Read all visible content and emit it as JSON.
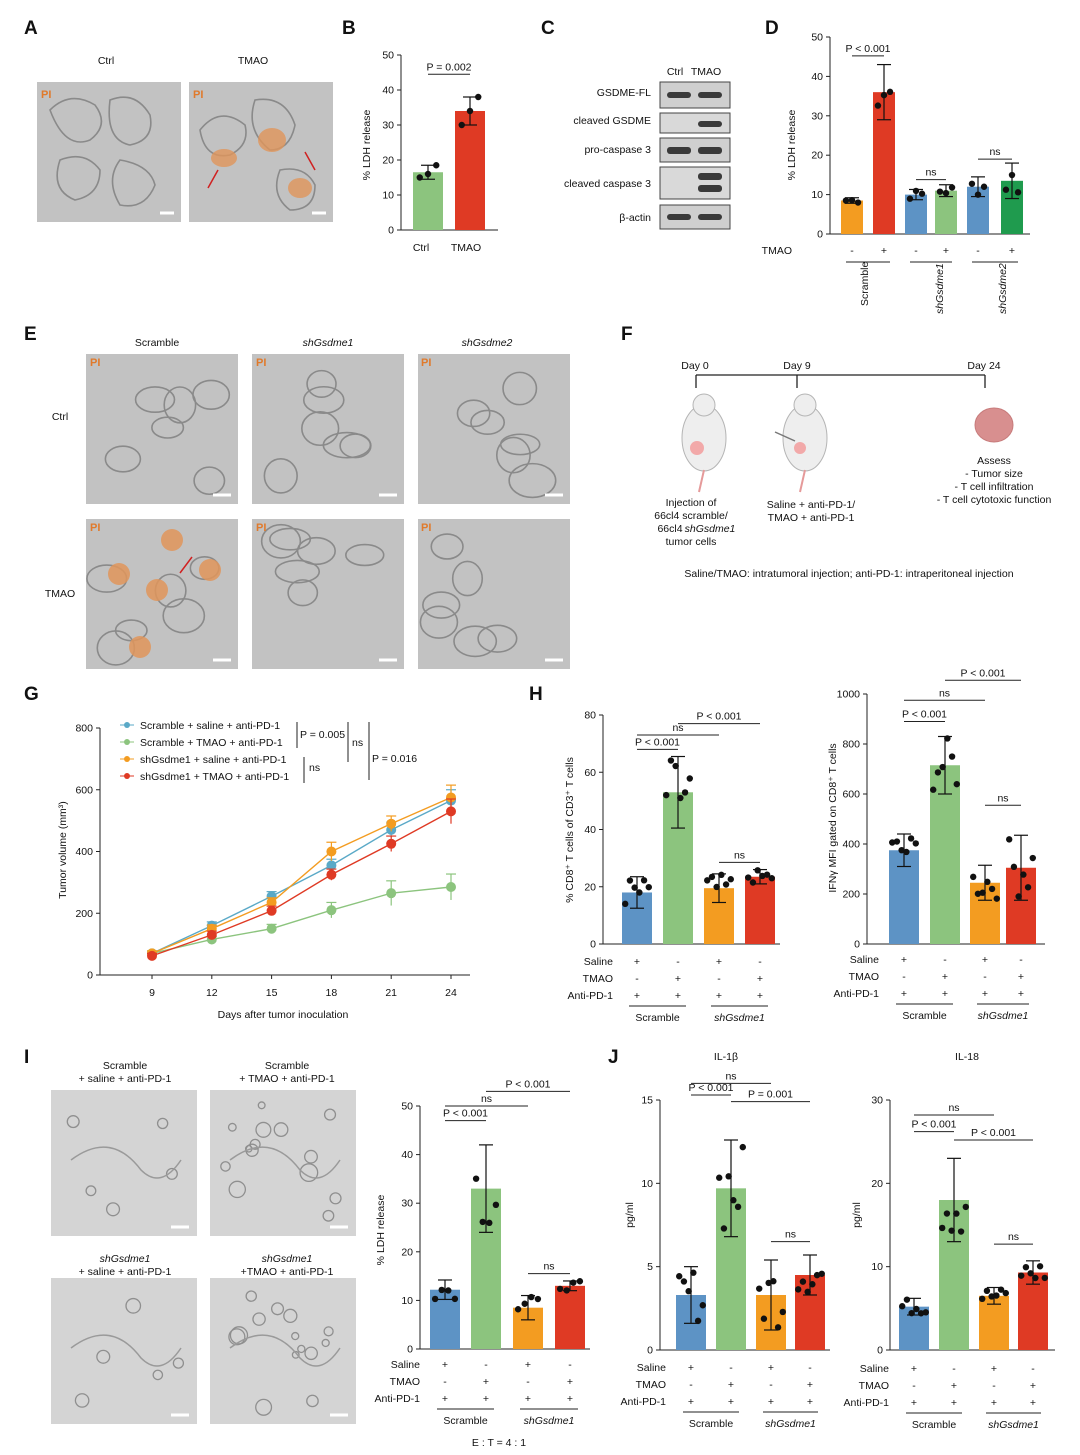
{
  "colors": {
    "green": "#8cc47e",
    "red": "#df3a24",
    "orange": "#f39c21",
    "blue": "#5d93c5",
    "dkgreen": "#1f9b4e",
    "gray_micro": "#c4c4c4"
  },
  "panels": {
    "A": {
      "label": "A",
      "ctrl": "Ctrl",
      "tmao": "TMAO",
      "pi": "PI"
    },
    "B": {
      "label": "B",
      "ylabel": "% LDH release",
      "yticks": [
        "0",
        "10",
        "20",
        "30",
        "40",
        "50"
      ],
      "categories": [
        "Ctrl",
        "TMAO"
      ],
      "pval": "P = 0.002"
    },
    "C": {
      "label": "C",
      "col_ctrl": "Ctrl",
      "col_tmao": "TMAO",
      "rows": [
        "GSDME-FL",
        "cleaved GSDME",
        "pro-caspase 3",
        "cleaved caspase 3",
        "β-actin"
      ]
    },
    "D": {
      "label": "D",
      "ylabel": "% LDH release",
      "yticks": [
        "0",
        "10",
        "20",
        "30",
        "40",
        "50"
      ],
      "pval": "P < 0.001",
      "ns": "ns",
      "tmao_row": "TMAO",
      "minus": "-",
      "plus": "+",
      "groups": [
        "Scramble",
        "shGsdme1",
        "shGsdme2"
      ]
    },
    "E": {
      "label": "E",
      "cols": [
        "Scramble",
        "shGsdme1",
        "shGsdme2"
      ],
      "rows": [
        "Ctrl",
        "TMAO"
      ],
      "pi": "PI"
    },
    "F": {
      "label": "F",
      "days": [
        "Day 0",
        "Day 9",
        "Day 24"
      ],
      "inj1a": "Injection of",
      "inj1b": "66cl4 scramble/",
      "inj1c": "66cl4",
      "inj1d": "shGsdme1",
      "inj1e": "tumor cells",
      "inj2a": "Saline + anti-PD-1/",
      "inj2b": "TMAO + anti-PD-1",
      "assess": [
        "Assess",
        "- Tumor size",
        "- T cell infiltration",
        "- T cell cytotoxic function"
      ],
      "footnote": "Saline/TMAO: intratumoral injection; anti-PD-1: intraperitoneal injection"
    },
    "G": {
      "label": "G",
      "ylabel": "Tumor volume (mm³)",
      "xlabel": "Days after tumor inoculation",
      "legend": [
        "Scramble + saline + anti-PD-1",
        "Scramble + TMAO + anti-PD-1",
        "shGsdme1 + saline + anti-PD-1",
        "shGsdme1 + TMAO + anti-PD-1"
      ],
      "p1": "P = 0.005",
      "p2": "P = 0.016",
      "ns": "ns"
    },
    "H": {
      "label": "H",
      "ylabel1": "% CD8⁺ T cells of CD3⁺ T cells",
      "ylabel2": "IFNγ MFI gated on CD8⁺ T cells",
      "rows": [
        "Saline",
        "TMAO",
        "Anti-PD-1"
      ],
      "groups": [
        "Scramble",
        "shGsdme1"
      ],
      "p001": "P < 0.001",
      "ns": "ns"
    },
    "I": {
      "label": "I",
      "img_titles": [
        [
          "Scramble",
          "+ saline + anti-PD-1"
        ],
        [
          "Scramble",
          "+ TMAO + anti-PD-1"
        ],
        [
          "shGsdme1",
          "+ saline + anti-PD-1"
        ],
        [
          "shGsdme1",
          "+TMAO + anti-PD-1"
        ]
      ],
      "ylabel": "% LDH release",
      "et": "E : T = 4 : 1",
      "p001": "P < 0.001",
      "ns": "ns"
    },
    "J": {
      "label": "J",
      "title1": "IL-1β",
      "title2": "IL-18",
      "ylabel": "pg/ml",
      "p001": "P < 0.001",
      "p0001": "P = 0.001",
      "ns": "ns"
    }
  },
  "chart_data": [
    {
      "type": "bar",
      "panel": "B",
      "categories": [
        "Ctrl",
        "TMAO"
      ],
      "values": [
        16.5,
        34
      ],
      "errors": [
        2,
        4
      ],
      "points": [
        [
          15,
          16,
          18.5
        ],
        [
          30,
          34,
          38
        ]
      ],
      "ylim": [
        0,
        50
      ],
      "ylabel": "% LDH release",
      "annotation": "P = 0.002"
    },
    {
      "type": "bar",
      "panel": "D",
      "categories": [
        "Scramble -",
        "Scramble +",
        "shGsdme1 -",
        "shGsdme1 +",
        "shGsdme2 -",
        "shGsdme2 +"
      ],
      "values": [
        8.5,
        36,
        10,
        11,
        12,
        13.5
      ],
      "errors": [
        0.7,
        7,
        1.3,
        1.5,
        2.5,
        4.5
      ],
      "ylim": [
        0,
        50
      ],
      "ylabel": "% LDH release"
    },
    {
      "type": "line",
      "panel": "G",
      "x": [
        9,
        12,
        15,
        18,
        21,
        24
      ],
      "xlabel": "Days after tumor inoculation",
      "ylabel": "Tumor volume (mm³)",
      "ylim": [
        0,
        800
      ],
      "series": [
        {
          "name": "Scramble + saline + anti-PD-1",
          "values": [
            70,
            160,
            255,
            355,
            470,
            565
          ],
          "errors": [
            8,
            12,
            15,
            20,
            25,
            35
          ]
        },
        {
          "name": "Scramble + TMAO + anti-PD-1",
          "values": [
            70,
            115,
            150,
            210,
            265,
            285
          ],
          "errors": [
            8,
            10,
            14,
            25,
            40,
            42
          ]
        },
        {
          "name": "shGsdme1 + saline + anti-PD-1",
          "values": [
            70,
            150,
            235,
            400,
            490,
            575
          ],
          "errors": [
            8,
            12,
            15,
            30,
            25,
            40
          ]
        },
        {
          "name": "shGsdme1 + TMAO + anti-PD-1",
          "values": [
            62,
            130,
            208,
            325,
            425,
            530
          ],
          "errors": [
            8,
            12,
            15,
            18,
            25,
            40
          ]
        }
      ]
    },
    {
      "type": "bar",
      "panel": "H-left",
      "categories": [
        "Scramble saline",
        "Scramble TMAO",
        "shGsdme1 saline",
        "shGsdme1 TMAO"
      ],
      "values": [
        18,
        53,
        19.5,
        23.5
      ],
      "errors": [
        5.5,
        12.5,
        5,
        2.5
      ],
      "ylim": [
        0,
        80
      ],
      "ylabel": "% CD8⁺ T cells of CD3⁺ T cells"
    },
    {
      "type": "bar",
      "panel": "H-right",
      "categories": [
        "Scramble saline",
        "Scramble TMAO",
        "shGsdme1 saline",
        "shGsdme1 TMAO"
      ],
      "values": [
        375,
        715,
        245,
        305
      ],
      "errors": [
        65,
        115,
        70,
        130
      ],
      "ylim": [
        0,
        1000
      ],
      "ylabel": "IFNγ MFI gated on CD8⁺ T cells"
    },
    {
      "type": "bar",
      "panel": "I",
      "categories": [
        "Scramble saline",
        "Scramble TMAO",
        "shGsdme1 saline",
        "shGsdme1 TMAO"
      ],
      "values": [
        12.2,
        33,
        8.5,
        13
      ],
      "errors": [
        2,
        9,
        2.5,
        1
      ],
      "ylim": [
        0,
        50
      ],
      "ylabel": "% LDH release"
    },
    {
      "type": "bar",
      "panel": "J-IL-1β",
      "categories": [
        "Scramble saline",
        "Scramble TMAO",
        "shGsdme1 saline",
        "shGsdme1 TMAO"
      ],
      "values": [
        3.3,
        9.7,
        3.3,
        4.5
      ],
      "errors": [
        1.7,
        2.9,
        2.1,
        1.2
      ],
      "ylim": [
        0,
        15
      ],
      "ylabel": "pg/ml"
    },
    {
      "type": "bar",
      "panel": "J-IL-18",
      "categories": [
        "Scramble saline",
        "Scramble TMAO",
        "shGsdme1 saline",
        "shGsdme1 TMAO"
      ],
      "values": [
        5.2,
        18,
        6.5,
        9.3
      ],
      "errors": [
        1,
        5,
        1,
        1.4
      ],
      "ylim": [
        0,
        30
      ],
      "ylabel": "pg/ml"
    }
  ]
}
